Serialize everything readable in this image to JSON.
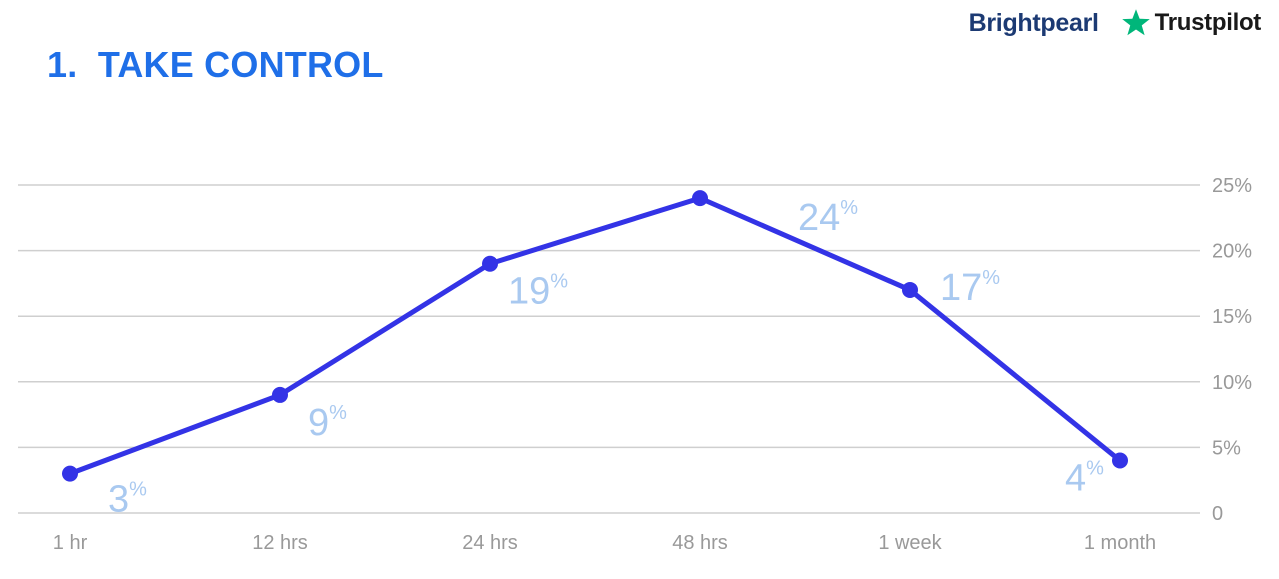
{
  "header": {
    "title_number": "1.",
    "title_text": "TAKE CONTROL"
  },
  "brands": {
    "brightpearl": "Brightpearl",
    "trustpilot": "Trustpilot",
    "trustpilot_star_icon": "star-icon",
    "trustpilot_star_color": "#00b67a"
  },
  "colors": {
    "title": "#1f6fe8",
    "line": "#3333e6",
    "data_label": "#a9c9f0",
    "grid": "#cfcfcf",
    "tick": "#999999"
  },
  "chart_data": {
    "type": "line",
    "categories": [
      "1 hr",
      "12 hrs",
      "24 hrs",
      "48 hrs",
      "1 week",
      "1 month"
    ],
    "series": [
      {
        "values": [
          3,
          9,
          19,
          24,
          17,
          4
        ]
      }
    ],
    "data_labels": [
      "3",
      "9",
      "19",
      "24",
      "17",
      "4"
    ],
    "data_label_suffix": "%",
    "y_ticks": [
      "0",
      "5%",
      "10%",
      "15%",
      "20%",
      "25%"
    ],
    "y_tick_values": [
      0,
      5,
      10,
      15,
      20,
      25
    ],
    "ylim": [
      0,
      25
    ],
    "y_axis_side": "right",
    "grid": true,
    "legend": false
  }
}
